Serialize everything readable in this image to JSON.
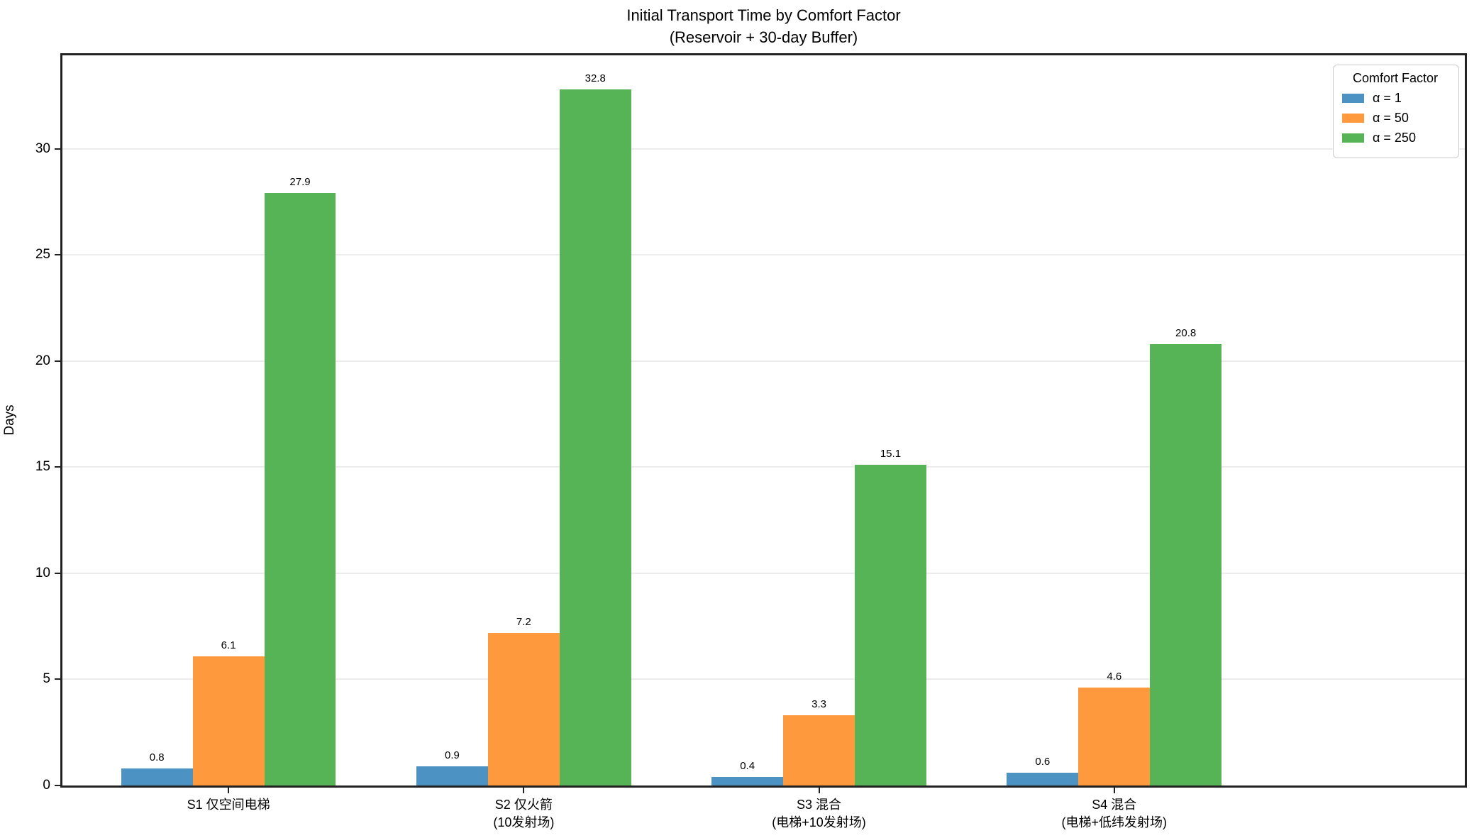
{
  "figure": {
    "title": "Initial Transport Time by Comfort Factor",
    "subtitle": "(Reservoir + 30-day Buffer)",
    "ylabel": "Days"
  },
  "legend": {
    "title": "Comfort Factor",
    "position": "upper-right"
  },
  "chart_data": {
    "type": "bar",
    "title": "Initial Transport Time by Comfort Factor",
    "subtitle": "(Reservoir + 30-day Buffer)",
    "xlabel": "",
    "ylabel": "Days",
    "categories": [
      "S1 仅空间电梯",
      "S2 仅火箭\n(10发射场)",
      "S3 混合\n(电梯+10发射场)",
      "S4 混合\n(电梯+低纬发射场)"
    ],
    "series": [
      {
        "name": "α = 1",
        "color": "#4C92C3",
        "values": [
          0.8,
          0.9,
          0.4,
          0.6
        ]
      },
      {
        "name": "α = 50",
        "color": "#FF993E",
        "values": [
          6.1,
          7.2,
          3.3,
          4.6
        ]
      },
      {
        "name": "α = 250",
        "color": "#56B356",
        "values": [
          27.9,
          32.8,
          15.1,
          20.8
        ]
      }
    ],
    "bar_value_labels": true,
    "yticks": [
      0,
      5,
      10,
      15,
      20,
      25,
      30
    ],
    "ylim": [
      0,
      34.4
    ],
    "grid": "horizontal-light",
    "grid_color": "#ececec",
    "legend_title": "Comfort Factor",
    "legend_position": "upper right"
  }
}
